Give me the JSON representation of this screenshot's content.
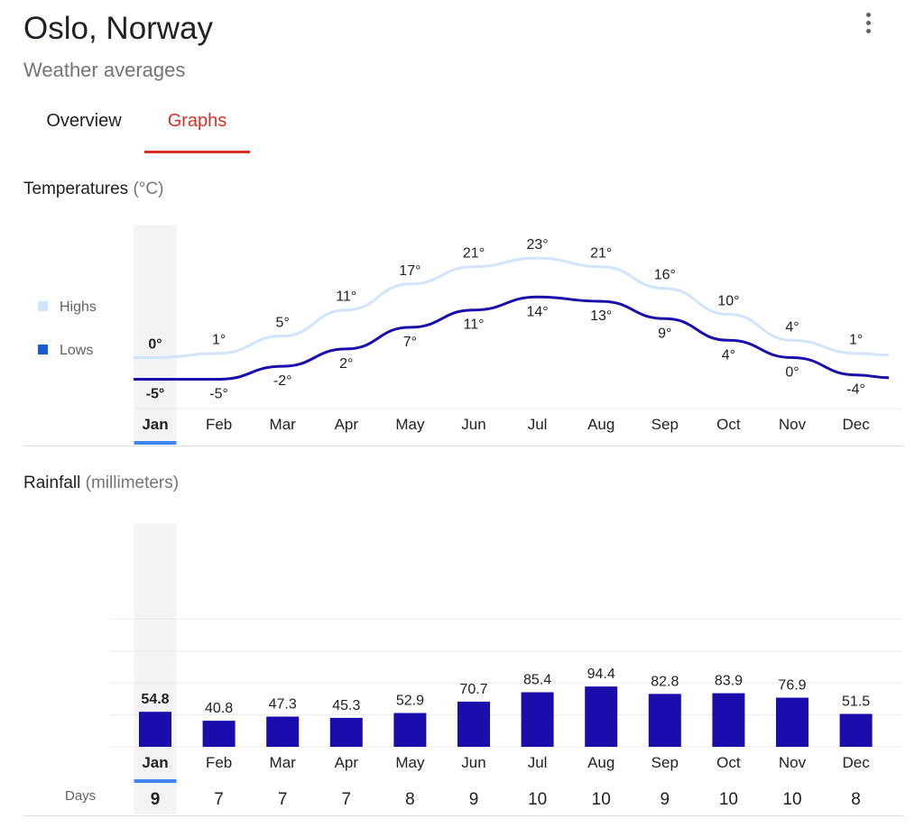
{
  "header": {
    "title": "Oslo, Norway",
    "subtitle": "Weather averages",
    "menu_icon": "more-vert-icon"
  },
  "tabs": [
    {
      "label": "Overview",
      "selected": false
    },
    {
      "label": "Graphs",
      "selected": true
    }
  ],
  "colors": {
    "accent": "#d93025",
    "highs": "#d2e3fc",
    "lows": "#1a0dab",
    "bars": "#1a0dab",
    "selected_month": "#4285f4",
    "highlight_band": "#f1f3f4"
  },
  "temperatures": {
    "title": "Temperatures",
    "unit": "(°C)",
    "legend": {
      "highs": "Highs",
      "lows": "Lows"
    }
  },
  "rainfall": {
    "title": "Rainfall",
    "unit": "(millimeters)",
    "days_label": "Days"
  },
  "selected_month": "Jan",
  "chart_data": [
    {
      "type": "line",
      "title": "Temperatures",
      "categories": [
        "Jan",
        "Feb",
        "Mar",
        "Apr",
        "May",
        "Jun",
        "Jul",
        "Aug",
        "Sep",
        "Oct",
        "Nov",
        "Dec"
      ],
      "series": [
        {
          "name": "Highs",
          "values": [
            0,
            1,
            5,
            11,
            17,
            21,
            23,
            21,
            16,
            10,
            4,
            1
          ]
        },
        {
          "name": "Lows",
          "values": [
            -5,
            -5,
            -2,
            2,
            7,
            11,
            14,
            13,
            9,
            4,
            0,
            -4
          ]
        }
      ],
      "legend": "left",
      "unit": "°C"
    },
    {
      "type": "bar",
      "title": "Rainfall",
      "categories": [
        "Jan",
        "Feb",
        "Mar",
        "Apr",
        "May",
        "Jun",
        "Jul",
        "Aug",
        "Sep",
        "Oct",
        "Nov",
        "Dec"
      ],
      "values": [
        54.8,
        40.8,
        47.3,
        45.3,
        52.9,
        70.7,
        85.4,
        94.4,
        82.8,
        83.9,
        76.9,
        51.5
      ],
      "days": [
        9,
        7,
        7,
        7,
        8,
        9,
        10,
        10,
        9,
        10,
        10,
        8
      ],
      "unit": "millimeters",
      "grid": true
    }
  ]
}
